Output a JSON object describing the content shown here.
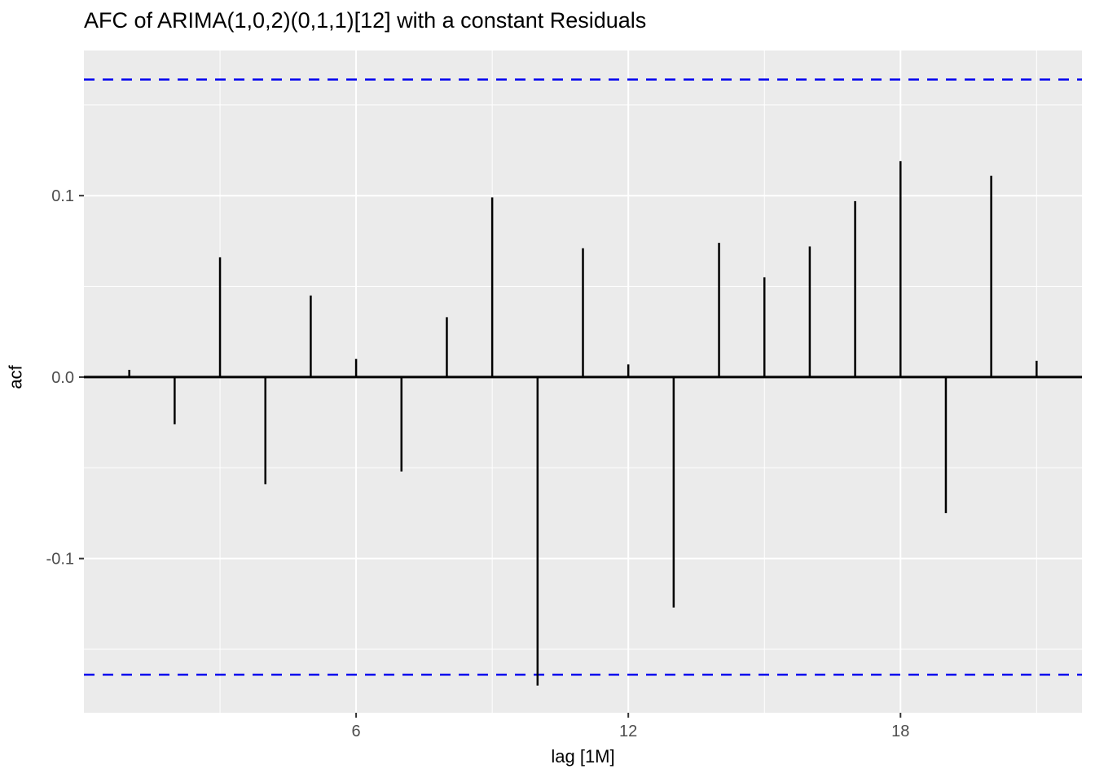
{
  "chart_data": {
    "type": "bar",
    "subtype": "acf-spike-plot",
    "title": "AFC of ARIMA(1,0,2)(0,1,1)[12] with a constant Residuals",
    "xlabel": "lag [1M]",
    "ylabel": "acf",
    "x": [
      1,
      2,
      3,
      4,
      5,
      6,
      7,
      8,
      9,
      10,
      11,
      12,
      13,
      14,
      15,
      16,
      17,
      18,
      19,
      20,
      21
    ],
    "values": [
      0.004,
      -0.026,
      0.066,
      -0.059,
      0.045,
      0.01,
      -0.052,
      0.033,
      0.099,
      -0.17,
      0.071,
      0.007,
      -0.127,
      0.074,
      0.055,
      0.072,
      0.097,
      0.119,
      -0.075,
      0.111,
      0.009
    ],
    "confidence_bounds": {
      "upper": 0.164,
      "lower": -0.164
    },
    "xlim": [
      0,
      22
    ],
    "ylim": [
      -0.185,
      0.18
    ],
    "x_ticks": [
      6,
      12,
      18
    ],
    "x_tick_labels": [
      "6",
      "12",
      "18"
    ],
    "x_minor_ticks": [
      3,
      9,
      15,
      21
    ],
    "y_ticks": [
      0.1,
      0.0,
      -0.1
    ],
    "y_tick_labels": [
      "0.1",
      "0.0",
      "-0.1"
    ],
    "y_minor_ticks": [
      0.15,
      0.05,
      -0.05,
      -0.15
    ],
    "grid": true,
    "legend": false,
    "colors": {
      "spike": "#000000",
      "zero_line": "#000000",
      "bound": "#0000ee",
      "panel_bg": "#ebebeb",
      "grid_major": "#ffffff",
      "grid_minor": "#ffffff",
      "tick_label": "#4d4d4d",
      "tick_mark": "#333333",
      "figure_bg": "#ffffff"
    }
  }
}
